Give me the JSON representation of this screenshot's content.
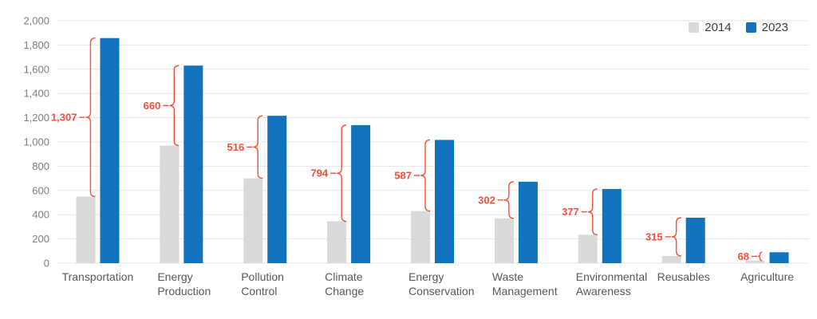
{
  "chart_data": {
    "type": "bar",
    "title": "",
    "xlabel": "",
    "ylabel": "",
    "categories": [
      "Transportation",
      "Energy Production",
      "Pollution Control",
      "Climate Change",
      "Energy Conservation",
      "Waste Management",
      "Environmental Awareness",
      "Reusables",
      "Agriculture"
    ],
    "series": [
      {
        "name": "2014",
        "color": "#d9d9d9",
        "values": [
          550,
          970,
          700,
          345,
          430,
          370,
          235,
          60,
          22
        ]
      },
      {
        "name": "2023",
        "color": "#1172bd",
        "values": [
          1857,
          1630,
          1216,
          1139,
          1017,
          672,
          612,
          375,
          90
        ]
      }
    ],
    "difference_annotations": {
      "color": "#f0503a",
      "labels": [
        "1,307",
        "660",
        "516",
        "794",
        "587",
        "302",
        "377",
        "315",
        "68"
      ],
      "values": [
        1307,
        660,
        516,
        794,
        587,
        302,
        377,
        315,
        68
      ]
    },
    "ylim": [
      0,
      2000
    ],
    "ytick_step": 200,
    "ytick_labels": [
      "0",
      "200",
      "400",
      "600",
      "800",
      "1,000",
      "1,200",
      "1,400",
      "1,600",
      "1,800",
      "2,000"
    ],
    "grid": true,
    "legend_position": "top-right"
  },
  "legend": {
    "entries": [
      {
        "label": "2014"
      },
      {
        "label": "2023"
      }
    ]
  }
}
